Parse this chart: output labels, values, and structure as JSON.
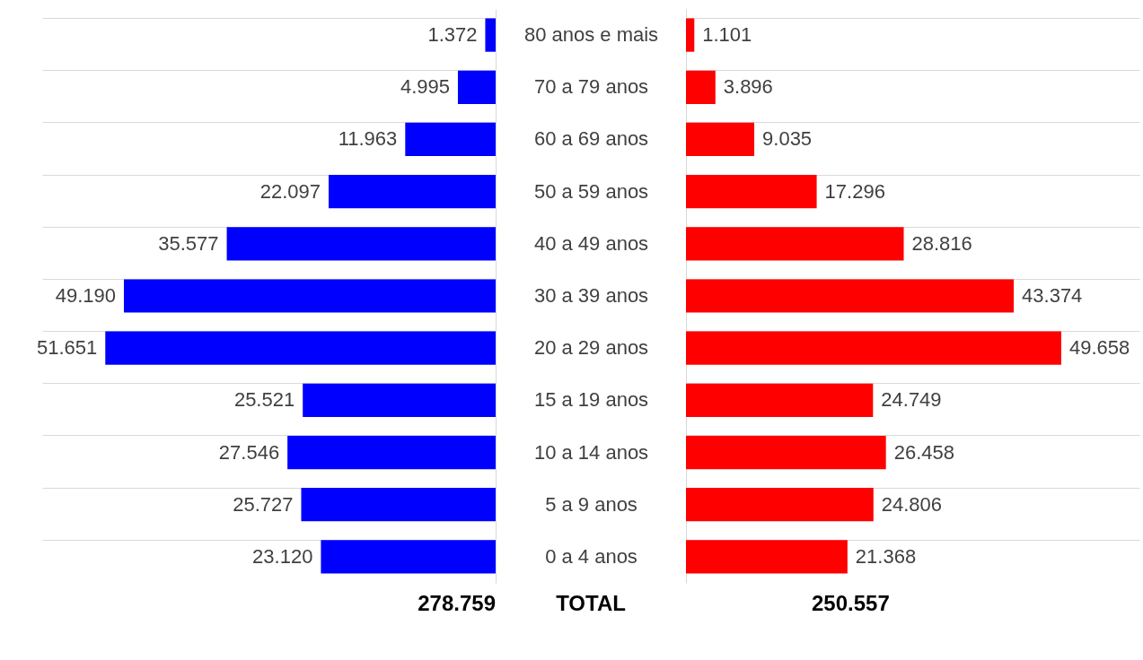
{
  "chart_data": [
    {
      "type": "bar",
      "orientation": "horizontal",
      "categories": [
        "80 anos e mais",
        "70 a 79 anos",
        "60 a 69 anos",
        "50 a 59 anos",
        "40 a 49 anos",
        "30 a 39 anos",
        "20 a 29 anos",
        "15 a 19 anos",
        "10 a 14 anos",
        "5 a 9 anos",
        "0 a 4 anos"
      ],
      "xlim": [
        60000,
        0
      ],
      "tick_labels": "y",
      "grid": "y",
      "annotations": [
        "278.759",
        "TOTAL"
      ],
      "series": [
        {
          "color": "#0000ff",
          "values": [
            1372,
            4995,
            11963,
            22097,
            35577,
            49190,
            51651,
            25521,
            27546,
            25727,
            23120
          ],
          "value_labels": [
            "1.372",
            "4.995",
            "11.963",
            "22.097",
            "35.577",
            "49.190",
            "51.651",
            "25.521",
            "27.546",
            "25.727",
            "23.120"
          ]
        }
      ]
    },
    {
      "type": "bar",
      "orientation": "horizontal",
      "categories": [
        null,
        null,
        null,
        null,
        null,
        null,
        null,
        null,
        null,
        null,
        null
      ],
      "xlim": [
        0,
        60000
      ],
      "tick_labels": false,
      "grid": "y",
      "annotations": [
        "250.557"
      ],
      "series": [
        {
          "color": "#ff0000",
          "values": [
            1101,
            3896,
            9035,
            17296,
            28816,
            43374,
            49658,
            24749,
            26458,
            24806,
            21368
          ],
          "value_labels": [
            "1.101",
            "3.896",
            "9.035",
            "17.296",
            "28.816",
            "43.374",
            "49.658",
            "24.749",
            "26.458",
            "24.806",
            "21.368"
          ]
        }
      ]
    }
  ]
}
